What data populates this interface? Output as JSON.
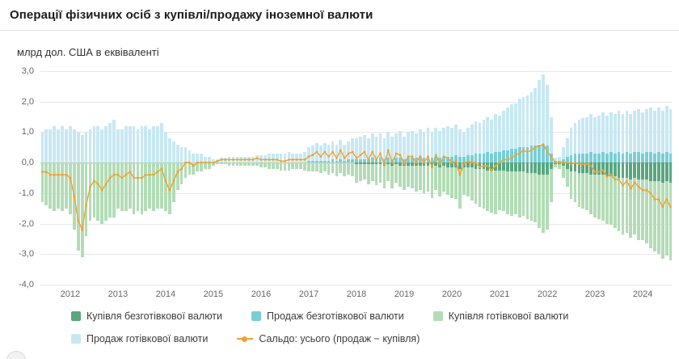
{
  "header": {
    "title": "Операції фізичних осіб з купівлі/продажу іноземної валюти"
  },
  "chart": {
    "y_axis_title": "млрд дол. США в еквіваленті"
  },
  "legend": [
    {
      "label": "Купівля безготівкової валюти",
      "color": "#58a77f",
      "type": "square"
    },
    {
      "label": "Продаж безготівкової валюти",
      "color": "#79ced5",
      "type": "square"
    },
    {
      "label": "Купівля готівкової валюти",
      "color": "#b3dcb6",
      "type": "square"
    },
    {
      "label": "Продаж готівкової валюти",
      "color": "#c7e8f3",
      "type": "square"
    },
    {
      "label": "Сальдо: усього (продаж − купівля)",
      "color": "#f0a22e",
      "type": "line"
    }
  ],
  "chart_data": {
    "type": "bar",
    "stacked": true,
    "frequency": "monthly",
    "start_month": "2011-06",
    "title": "Операції фізичних осіб з купівлі/продажу іноземної валюти",
    "ylabel": "млрд дол. США в еквіваленті",
    "ylim": [
      -4,
      3
    ],
    "grid": true,
    "legend_position": "bottom",
    "y_ticks": [
      3,
      2,
      1,
      0,
      -1,
      -2,
      -3,
      -4
    ],
    "y_tick_labels": [
      "3,0",
      "2,0",
      "1,0",
      "0,0",
      "-1,0",
      "-2,0",
      "-3,0",
      "-4,0"
    ],
    "x_tick_years": [
      2012,
      2013,
      2014,
      2015,
      2016,
      2017,
      2018,
      2019,
      2020,
      2021,
      2022,
      2023,
      2024
    ],
    "jan_2012_index": 7,
    "stack_order": {
      "positive": [
        "sell_noncash",
        "sell_cash"
      ],
      "negative": [
        "buy_noncash",
        "buy_cash"
      ]
    },
    "series": [
      {
        "key": "buy_noncash",
        "name": "Купівля безготівкової валюти",
        "color": "#58a77f",
        "values": [
          0,
          0,
          0,
          0,
          0,
          0,
          0,
          0,
          0,
          0,
          0,
          0,
          0,
          0,
          0,
          0,
          0,
          0,
          0,
          0,
          0,
          0,
          0,
          0,
          0,
          0,
          0,
          0,
          0,
          0,
          0,
          0,
          0,
          0,
          0,
          0,
          0,
          0,
          0,
          0,
          0,
          0,
          0,
          0,
          0,
          0,
          0,
          0,
          0,
          0,
          0,
          0,
          0,
          0,
          0,
          0,
          0,
          0,
          0,
          0,
          0,
          0,
          0,
          0,
          0,
          0,
          0,
          0,
          0,
          0,
          0,
          0,
          0,
          0,
          0,
          0,
          0,
          0,
          0,
          -0.05,
          -0.05,
          -0.05,
          -0.05,
          -0.05,
          -0.05,
          -0.05,
          -0.1,
          -0.05,
          -0.1,
          -0.05,
          -0.1,
          -0.1,
          -0.1,
          -0.1,
          -0.1,
          -0.1,
          -0.1,
          -0.1,
          -0.15,
          -0.1,
          -0.15,
          -0.1,
          -0.15,
          -0.15,
          -0.15,
          -0.2,
          -0.15,
          -0.15,
          -0.15,
          -0.2,
          -0.2,
          -0.2,
          -0.25,
          -0.25,
          -0.25,
          -0.25,
          -0.25,
          -0.3,
          -0.3,
          -0.3,
          -0.3,
          -0.3,
          -0.35,
          -0.35,
          -0.35,
          -0.4,
          -0.4,
          -0.4,
          -0.2,
          -0.05,
          -0.05,
          -0.1,
          -0.2,
          -0.3,
          -0.3,
          -0.35,
          -0.35,
          -0.35,
          -0.4,
          -0.4,
          -0.4,
          -0.4,
          -0.45,
          -0.45,
          -0.45,
          -0.5,
          -0.5,
          -0.5,
          -0.55,
          -0.5,
          -0.55,
          -0.55,
          -0.55,
          -0.6,
          -0.6,
          -0.6,
          -0.65,
          -0.6,
          -0.65
        ]
      },
      {
        "key": "sell_noncash",
        "name": "Продаж безготівкової валюти",
        "color": "#79ced5",
        "values": [
          0,
          0,
          0,
          0,
          0,
          0,
          0,
          0,
          0,
          0,
          0,
          0,
          0,
          0,
          0,
          0,
          0,
          0,
          0,
          0,
          0,
          0,
          0,
          0,
          0,
          0,
          0,
          0,
          0,
          0,
          0,
          0,
          0,
          0,
          0,
          0,
          0,
          0,
          0,
          0,
          0,
          0,
          0,
          0,
          0,
          0,
          0,
          0,
          0,
          0,
          0,
          0,
          0,
          0,
          0,
          0,
          0,
          0,
          0,
          0,
          0,
          0,
          0,
          0,
          0,
          0,
          0,
          0.05,
          0.05,
          0.05,
          0.05,
          0.05,
          0.05,
          0.1,
          0.05,
          0.1,
          0.05,
          0.1,
          0.1,
          0.1,
          0.1,
          0.1,
          0.1,
          0.15,
          0.1,
          0.15,
          0.1,
          0.15,
          0.1,
          0.15,
          0.15,
          0.1,
          0.15,
          0.15,
          0.15,
          0.2,
          0.15,
          0.2,
          0.15,
          0.2,
          0.15,
          0.2,
          0.2,
          0.2,
          0.25,
          0.2,
          0.2,
          0.25,
          0.25,
          0.3,
          0.3,
          0.3,
          0.35,
          0.3,
          0.35,
          0.35,
          0.4,
          0.4,
          0.45,
          0.45,
          0.5,
          0.5,
          0.5,
          0.55,
          0.55,
          0.6,
          0.6,
          0.55,
          0.3,
          0.05,
          0.05,
          0.1,
          0.2,
          0.25,
          0.3,
          0.3,
          0.3,
          0.3,
          0.35,
          0.3,
          0.3,
          0.35,
          0.3,
          0.35,
          0.3,
          0.35,
          0.3,
          0.35,
          0.3,
          0.35,
          0.35,
          0.3,
          0.35,
          0.35,
          0.3,
          0.35,
          0.3,
          0.35,
          0.3
        ]
      },
      {
        "key": "buy_cash",
        "name": "Купівля готівкової валюти",
        "color": "#b3dcb6",
        "values": [
          -1.3,
          -1.4,
          -1.5,
          -1.6,
          -1.5,
          -1.6,
          -1.5,
          -1.7,
          -2.2,
          -2.9,
          -3.1,
          -2.4,
          -1.9,
          -1.8,
          -1.9,
          -2.0,
          -1.9,
          -1.8,
          -1.8,
          -1.5,
          -1.6,
          -1.6,
          -1.5,
          -1.7,
          -1.6,
          -1.7,
          -1.6,
          -1.5,
          -1.6,
          -1.5,
          -1.5,
          -1.6,
          -1.7,
          -1.3,
          -0.9,
          -0.7,
          -0.5,
          -0.4,
          -0.4,
          -0.3,
          -0.3,
          -0.2,
          -0.2,
          -0.1,
          -0.05,
          -0.05,
          -0.05,
          -0.1,
          -0.1,
          -0.1,
          -0.1,
          -0.1,
          -0.1,
          -0.1,
          -0.1,
          -0.15,
          -0.15,
          -0.2,
          -0.2,
          -0.2,
          -0.25,
          -0.25,
          -0.25,
          -0.2,
          -0.2,
          -0.2,
          -0.25,
          -0.3,
          -0.3,
          -0.3,
          -0.35,
          -0.3,
          -0.4,
          -0.35,
          -0.45,
          -0.35,
          -0.45,
          -0.4,
          -0.45,
          -0.6,
          -0.55,
          -0.5,
          -0.65,
          -0.55,
          -0.7,
          -0.6,
          -0.75,
          -0.55,
          -0.75,
          -0.6,
          -0.7,
          -0.8,
          -0.7,
          -0.75,
          -0.85,
          -0.8,
          -0.9,
          -0.85,
          -1.0,
          -0.8,
          -0.95,
          -0.85,
          -0.9,
          -1.0,
          -1.05,
          -1.3,
          -0.9,
          -0.95,
          -1.1,
          -1.15,
          -1.25,
          -1.3,
          -1.35,
          -1.4,
          -1.45,
          -1.3,
          -1.35,
          -1.4,
          -1.45,
          -1.4,
          -1.5,
          -1.45,
          -1.5,
          -1.55,
          -1.6,
          -1.75,
          -1.9,
          -1.8,
          -1.1,
          -0.1,
          -0.15,
          -0.4,
          -0.6,
          -0.9,
          -1.0,
          -1.1,
          -1.15,
          -1.2,
          -1.3,
          -1.4,
          -1.45,
          -1.5,
          -1.55,
          -1.6,
          -1.7,
          -1.75,
          -1.85,
          -1.8,
          -1.9,
          -1.85,
          -2.0,
          -2.0,
          -2.1,
          -2.2,
          -2.3,
          -2.4,
          -2.5,
          -2.45,
          -2.55
        ]
      },
      {
        "key": "sell_cash",
        "name": "Продаж готівкової валюти",
        "color": "#c7e8f3",
        "values": [
          1.0,
          1.1,
          1.1,
          1.2,
          1.1,
          1.2,
          1.1,
          1.2,
          1.1,
          1.0,
          0.9,
          1.0,
          1.1,
          1.2,
          1.2,
          1.1,
          1.2,
          1.3,
          1.4,
          1.1,
          1.1,
          1.2,
          1.2,
          1.2,
          1.1,
          1.2,
          1.2,
          1.1,
          1.2,
          1.2,
          1.3,
          1.0,
          0.8,
          0.7,
          0.6,
          0.5,
          0.5,
          0.4,
          0.3,
          0.3,
          0.3,
          0.2,
          0.2,
          0.1,
          0.1,
          0.15,
          0.15,
          0.2,
          0.2,
          0.2,
          0.2,
          0.2,
          0.2,
          0.2,
          0.25,
          0.25,
          0.25,
          0.3,
          0.3,
          0.3,
          0.3,
          0.3,
          0.35,
          0.3,
          0.3,
          0.3,
          0.35,
          0.45,
          0.5,
          0.6,
          0.5,
          0.6,
          0.55,
          0.6,
          0.55,
          0.65,
          0.55,
          0.6,
          0.7,
          0.7,
          0.75,
          0.8,
          0.7,
          0.8,
          0.75,
          0.8,
          0.7,
          0.85,
          0.75,
          0.8,
          0.9,
          0.75,
          0.85,
          0.9,
          0.8,
          0.9,
          0.85,
          0.95,
          0.85,
          0.95,
          0.9,
          0.95,
          1.0,
          0.95,
          1.0,
          0.9,
          0.8,
          0.9,
          1.0,
          1.05,
          1.0,
          1.1,
          1.15,
          1.1,
          1.25,
          1.2,
          1.3,
          1.4,
          1.45,
          1.5,
          1.6,
          1.65,
          1.7,
          1.75,
          1.9,
          2.1,
          2.3,
          2.0,
          1.2,
          0.1,
          0.15,
          0.4,
          0.6,
          0.9,
          1.0,
          1.1,
          1.15,
          1.2,
          1.25,
          1.2,
          1.25,
          1.3,
          1.25,
          1.3,
          1.3,
          1.35,
          1.3,
          1.35,
          1.3,
          1.35,
          1.4,
          1.35,
          1.4,
          1.45,
          1.4,
          1.45,
          1.4,
          1.5,
          1.45
        ]
      },
      {
        "key": "saldo",
        "name": "Сальдо: усього (продаж − купівля)",
        "color": "#f0a22e",
        "type": "line",
        "values": [
          -0.3,
          -0.3,
          -0.4,
          -0.4,
          -0.4,
          -0.4,
          -0.4,
          -0.5,
          -1.1,
          -1.9,
          -2.2,
          -1.4,
          -0.8,
          -0.6,
          -0.7,
          -0.9,
          -0.7,
          -0.5,
          -0.4,
          -0.4,
          -0.5,
          -0.4,
          -0.3,
          -0.5,
          -0.5,
          -0.5,
          -0.4,
          -0.4,
          -0.4,
          -0.3,
          -0.2,
          -0.6,
          -0.9,
          -0.6,
          -0.3,
          -0.2,
          0,
          0,
          -0.1,
          0,
          0,
          0,
          0,
          0,
          0.05,
          0.1,
          0.1,
          0.1,
          0.1,
          0.1,
          0.1,
          0.1,
          0.1,
          0.1,
          0.15,
          0.1,
          0.1,
          0.1,
          0.1,
          0.1,
          0.05,
          0.05,
          0.1,
          0.1,
          0.1,
          0.1,
          0.1,
          0.2,
          0.25,
          0.35,
          0.2,
          0.35,
          0.2,
          0.35,
          0.15,
          0.4,
          0.15,
          0.3,
          0.35,
          0.15,
          0.25,
          0.35,
          0.1,
          0.35,
          0.1,
          0.3,
          -0.05,
          0.4,
          0,
          0.3,
          0.25,
          -0.05,
          0.2,
          0.2,
          0,
          0.2,
          0,
          0.2,
          -0.15,
          0.25,
          -0.05,
          0.2,
          0.15,
          0,
          0.05,
          -0.4,
          -0.05,
          0.05,
          0,
          0,
          -0.15,
          -0.1,
          -0.1,
          -0.25,
          -0.1,
          0,
          0.1,
          0.1,
          0.15,
          0.25,
          0.3,
          0.4,
          0.35,
          0.4,
          0.5,
          0.55,
          0.6,
          0.35,
          0.2,
          0,
          0,
          0,
          0,
          -0.05,
          0,
          -0.05,
          -0.05,
          -0.05,
          -0.1,
          -0.3,
          -0.3,
          -0.25,
          -0.45,
          -0.4,
          -0.55,
          -0.55,
          -0.75,
          -0.6,
          -0.85,
          -0.65,
          -0.8,
          -0.9,
          -0.9,
          -1.0,
          -1.2,
          -1.2,
          -1.45,
          -1.2,
          -1.45
        ]
      }
    ]
  }
}
